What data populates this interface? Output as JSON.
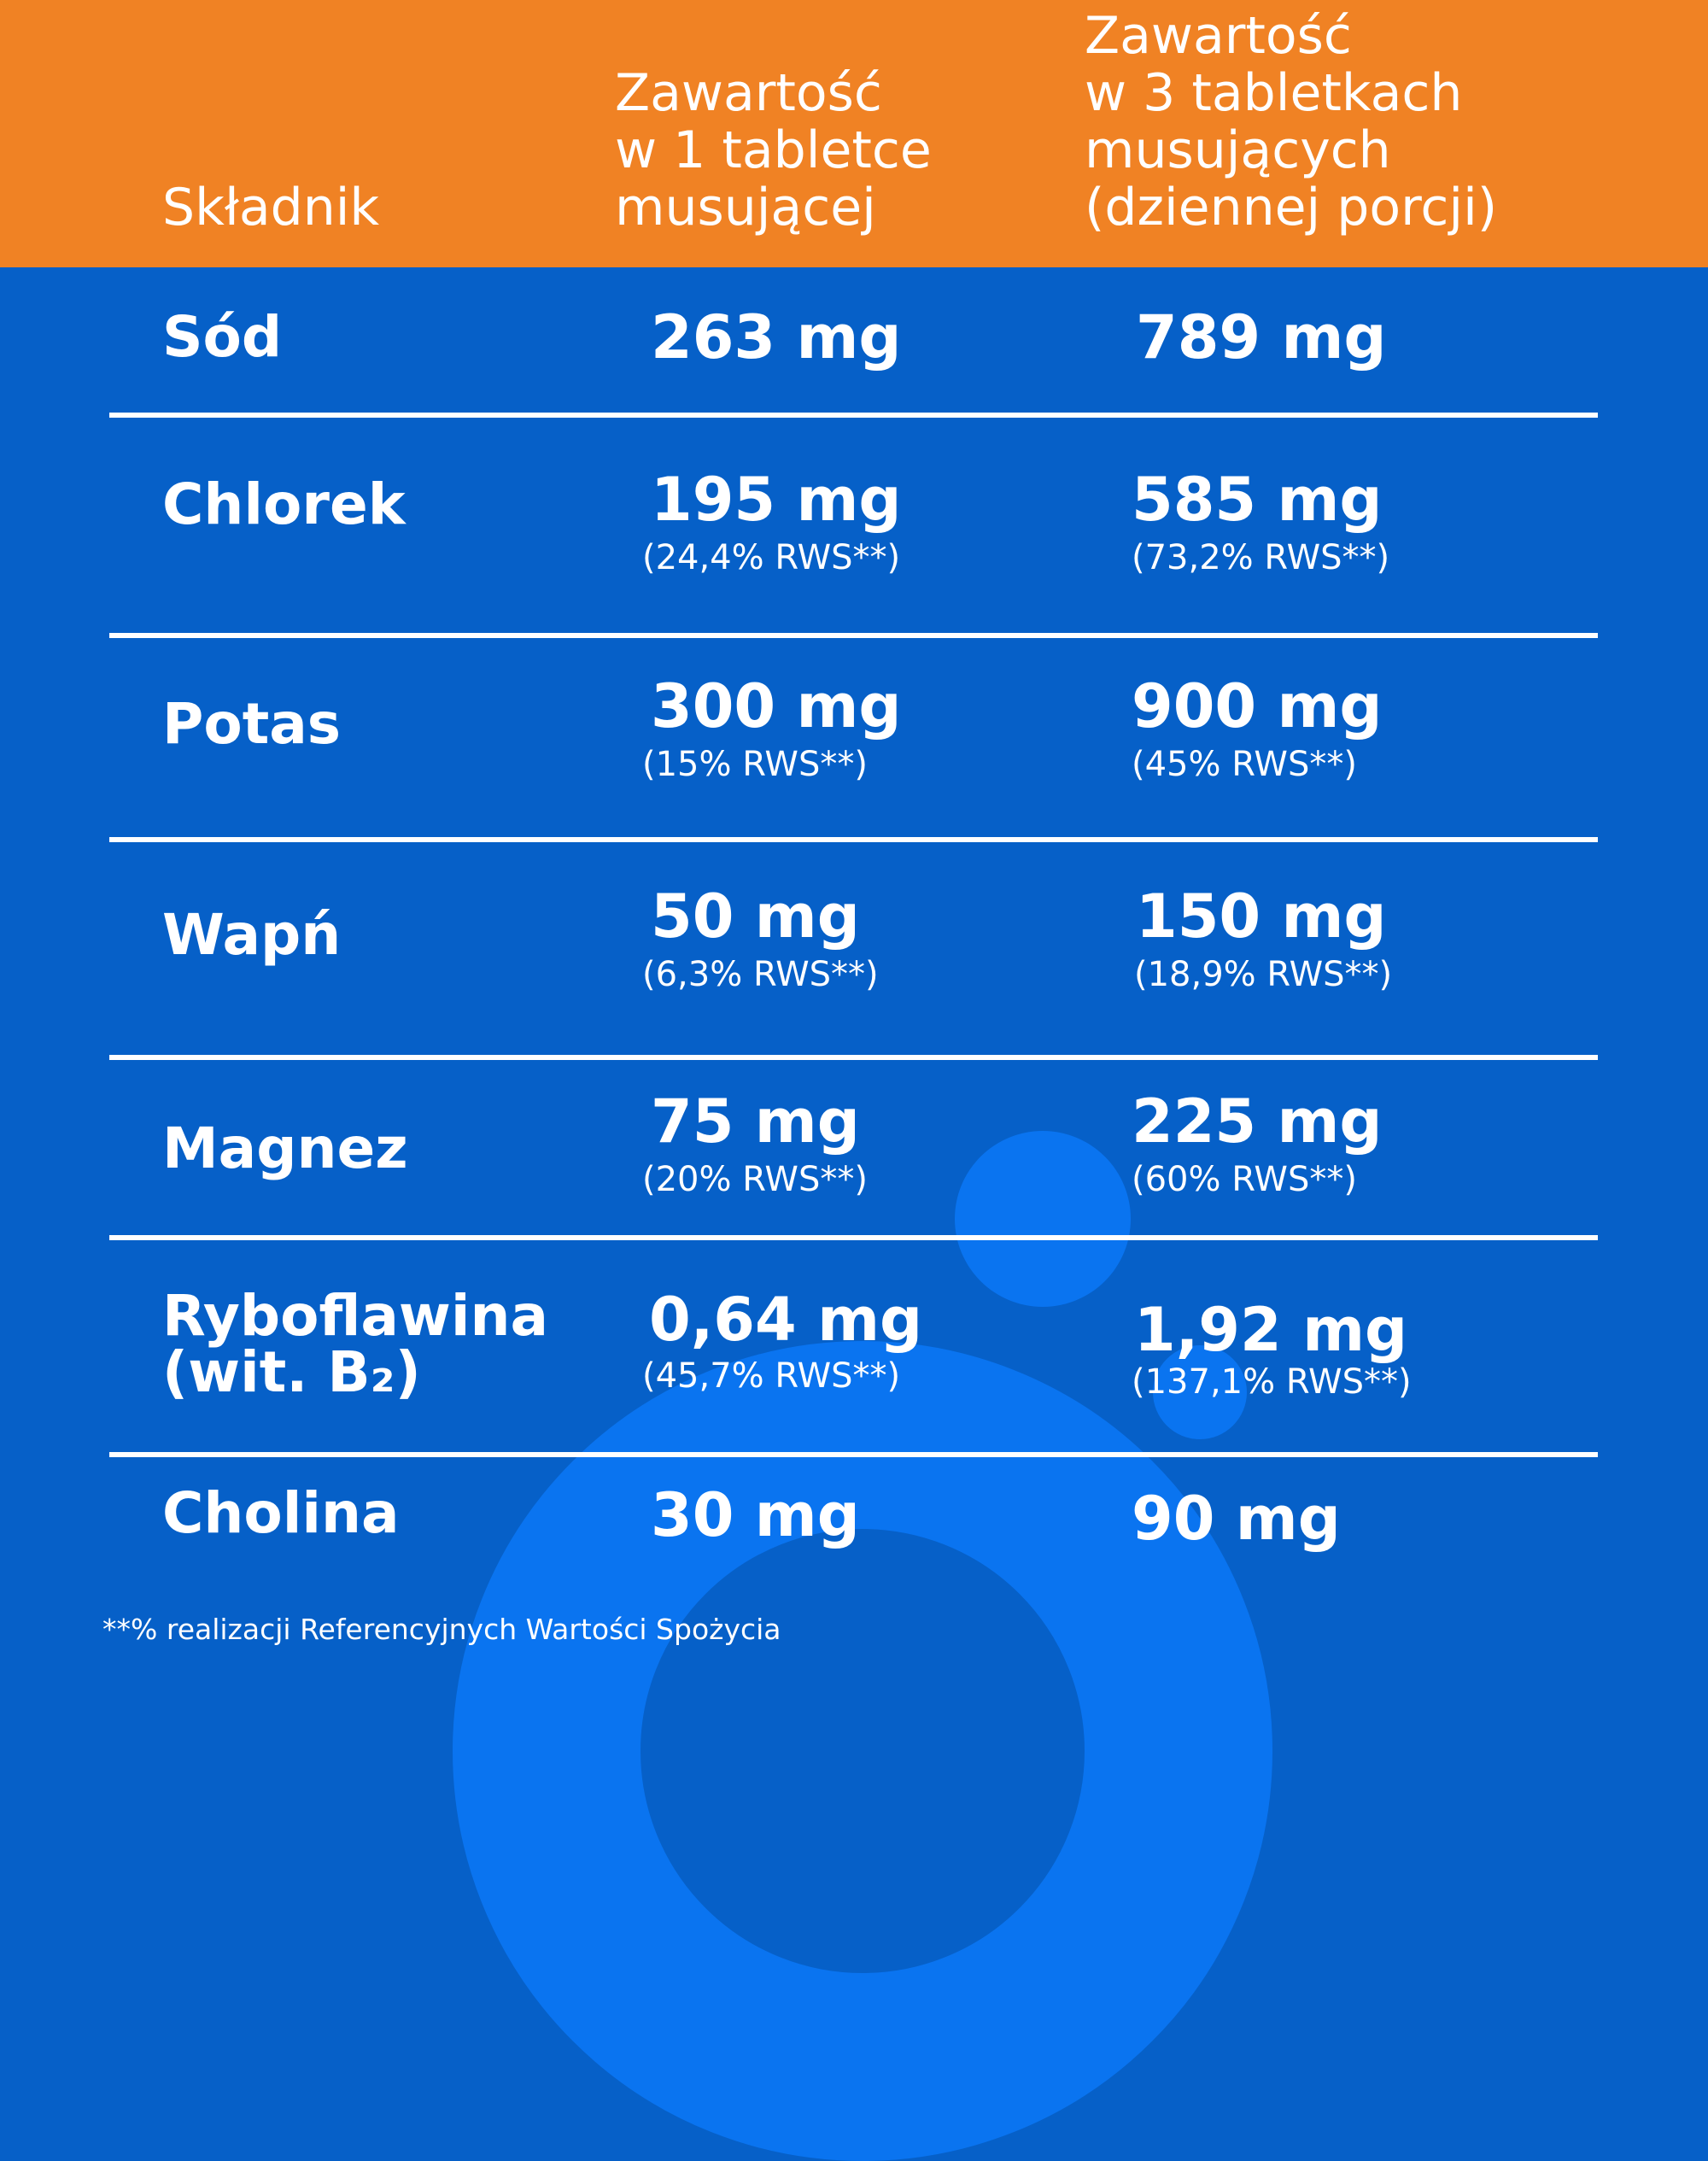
{
  "header": {
    "col_ingredient": "Składnik",
    "col_one_tablet": [
      "Zawartość",
      "w 1 tabletce",
      "musującej"
    ],
    "col_three_tablets": [
      "Zawartość",
      "w 3 tabletkach",
      "musujących",
      "(dziennej porcji)"
    ]
  },
  "rows": [
    {
      "name": [
        "Sód"
      ],
      "one": "263 mg",
      "one_rws": "",
      "three": "789 mg",
      "three_rws": ""
    },
    {
      "name": [
        "Chlorek"
      ],
      "one": "195 mg",
      "one_rws": "(24,4% RWS**)",
      "three": "585 mg",
      "three_rws": "(73,2% RWS**)"
    },
    {
      "name": [
        "Potas"
      ],
      "one": "300 mg",
      "one_rws": "(15% RWS**)",
      "three": "900 mg",
      "three_rws": "(45% RWS**)"
    },
    {
      "name": [
        "Wapń"
      ],
      "one": "50 mg",
      "one_rws": "(6,3% RWS**)",
      "three": "150 mg",
      "three_rws": "(18,9% RWS**)"
    },
    {
      "name": [
        "Magnez"
      ],
      "one": "75 mg",
      "one_rws": "(20% RWS**)",
      "three": "225 mg",
      "three_rws": "(60% RWS**)"
    },
    {
      "name": [
        "Ryboflawina",
        "(wit. B₂)"
      ],
      "one": "0,64 mg",
      "one_rws": "(45,7% RWS**)",
      "three": "1,92 mg",
      "three_rws": "(137,1% RWS**)"
    },
    {
      "name": [
        "Cholina"
      ],
      "one": "30 mg",
      "one_rws": "",
      "three": "90 mg",
      "three_rws": ""
    }
  ],
  "footnote": "**% realizacji Referencyjnych Wartości Spożycia",
  "colors": {
    "header_bg": "#f08224",
    "body_bg": "#0660c8",
    "accent_shape": "#0a74f0",
    "text": "#ffffff"
  }
}
